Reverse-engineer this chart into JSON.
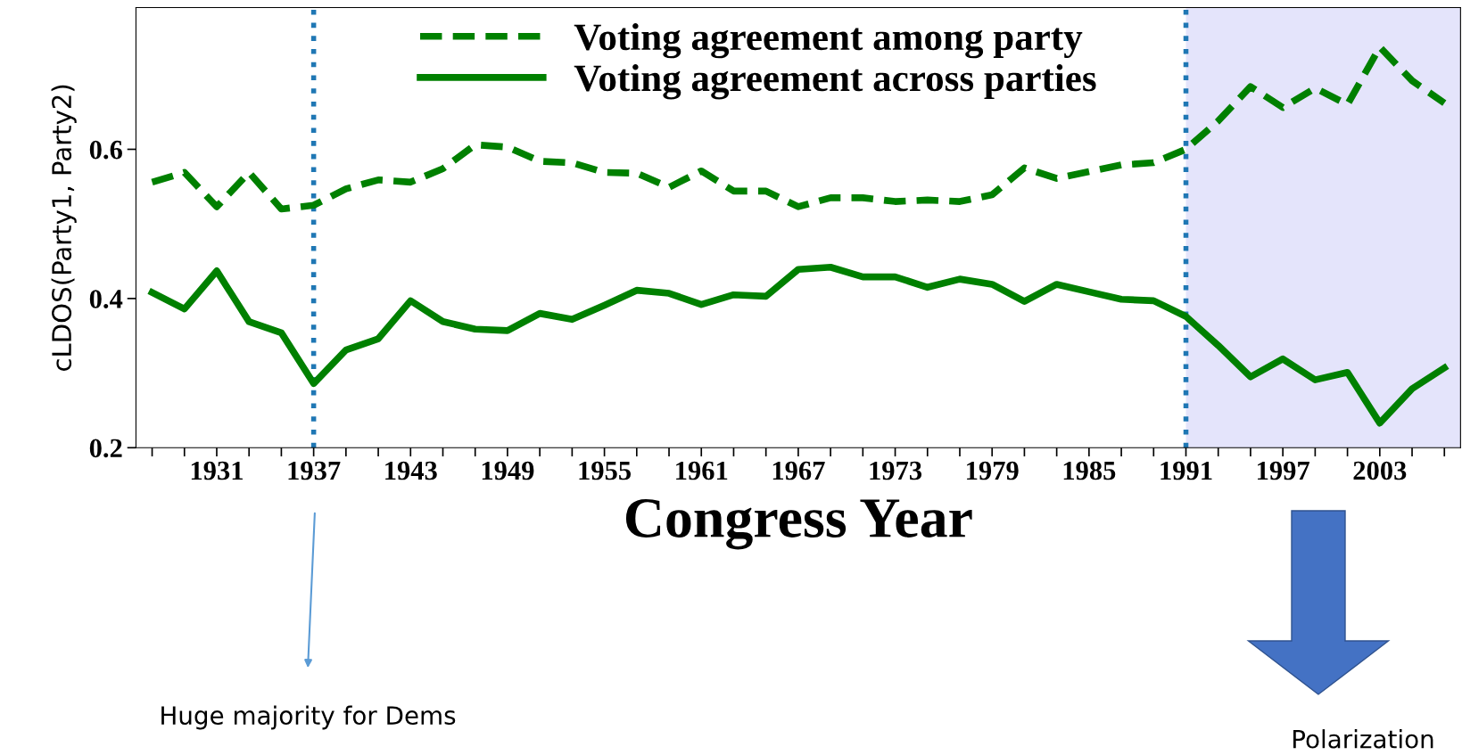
{
  "chart_data": {
    "type": "line",
    "xlabel": "Congress Year",
    "ylabel": "cLDOS(Party1, Party2)",
    "x": [
      1927,
      1929,
      1931,
      1933,
      1935,
      1937,
      1939,
      1941,
      1943,
      1945,
      1947,
      1949,
      1951,
      1953,
      1955,
      1957,
      1959,
      1961,
      1963,
      1965,
      1967,
      1969,
      1971,
      1973,
      1975,
      1977,
      1979,
      1981,
      1983,
      1985,
      1987,
      1989,
      1991,
      1993,
      1995,
      1997,
      1999,
      2001,
      2003,
      2005,
      2007
    ],
    "series": [
      {
        "name": "Voting agreement among party",
        "color": "#008000",
        "line_style": "dashed",
        "values": [
          0.556,
          0.569,
          0.523,
          0.569,
          0.52,
          0.525,
          0.547,
          0.559,
          0.556,
          0.574,
          0.606,
          0.603,
          0.584,
          0.582,
          0.569,
          0.568,
          0.549,
          0.571,
          0.544,
          0.544,
          0.523,
          0.535,
          0.535,
          0.53,
          0.532,
          0.53,
          0.539,
          0.575,
          0.561,
          0.57,
          0.579,
          0.582,
          0.6,
          0.638,
          0.684,
          0.656,
          0.682,
          0.66,
          0.737,
          0.692,
          0.662
        ]
      },
      {
        "name": "Voting agreement across parties",
        "color": "#008000",
        "line_style": "solid",
        "values": [
          0.408,
          0.386,
          0.437,
          0.369,
          0.354,
          0.286,
          0.331,
          0.346,
          0.397,
          0.369,
          0.359,
          0.357,
          0.38,
          0.372,
          0.391,
          0.411,
          0.407,
          0.392,
          0.405,
          0.403,
          0.439,
          0.442,
          0.429,
          0.429,
          0.415,
          0.426,
          0.419,
          0.396,
          0.419,
          0.409,
          0.399,
          0.397,
          0.376,
          0.337,
          0.295,
          0.319,
          0.291,
          0.301,
          0.233,
          0.279,
          0.307
        ]
      }
    ],
    "xlim": [
      1926,
      2008
    ],
    "ylim": [
      0.2,
      0.79
    ],
    "yticks": [
      0.2,
      0.4,
      0.6
    ],
    "xticks": [
      {
        "value": 1927,
        "label": null
      },
      {
        "value": 1929,
        "label": null
      },
      1931,
      {
        "value": 1933,
        "label": null
      },
      {
        "value": 1935,
        "label": null
      },
      1937,
      {
        "value": 1939,
        "label": null
      },
      {
        "value": 1941,
        "label": null
      },
      1943,
      {
        "value": 1945,
        "label": null
      },
      {
        "value": 1947,
        "label": null
      },
      1949,
      {
        "value": 1951,
        "label": null
      },
      {
        "value": 1953,
        "label": null
      },
      1955,
      {
        "value": 1957,
        "label": null
      },
      {
        "value": 1959,
        "label": null
      },
      1961,
      {
        "value": 1963,
        "label": null
      },
      {
        "value": 1965,
        "label": null
      },
      1967,
      {
        "value": 1969,
        "label": null
      },
      {
        "value": 1971,
        "label": null
      },
      1973,
      {
        "value": 1975,
        "label": null
      },
      {
        "value": 1977,
        "label": null
      },
      1979,
      {
        "value": 1981,
        "label": null
      },
      {
        "value": 1983,
        "label": null
      },
      1985,
      {
        "value": 1987,
        "label": null
      },
      {
        "value": 1989,
        "label": null
      },
      1991,
      {
        "value": 1993,
        "label": null
      },
      {
        "value": 1995,
        "label": null
      },
      1997,
      {
        "value": 1999,
        "label": null
      },
      {
        "value": 2001,
        "label": null
      },
      2003,
      {
        "value": 2005,
        "label": null
      },
      {
        "value": 2007,
        "label": null
      }
    ],
    "ref_lines": [
      {
        "axis": "x",
        "value": 1937,
        "color": "#1f77b4",
        "line_style": "dotted"
      },
      {
        "axis": "x",
        "value": 1991,
        "color": "#1f77b4",
        "line_style": "dotted"
      }
    ],
    "bands": [
      {
        "axis": "x",
        "from": 1991,
        "to": 2008,
        "color": "#e4e4fb"
      }
    ],
    "annotations": [
      "Huge majority for Dems",
      "Polarization"
    ],
    "legend": "top",
    "grid": false,
    "marker": "none"
  }
}
